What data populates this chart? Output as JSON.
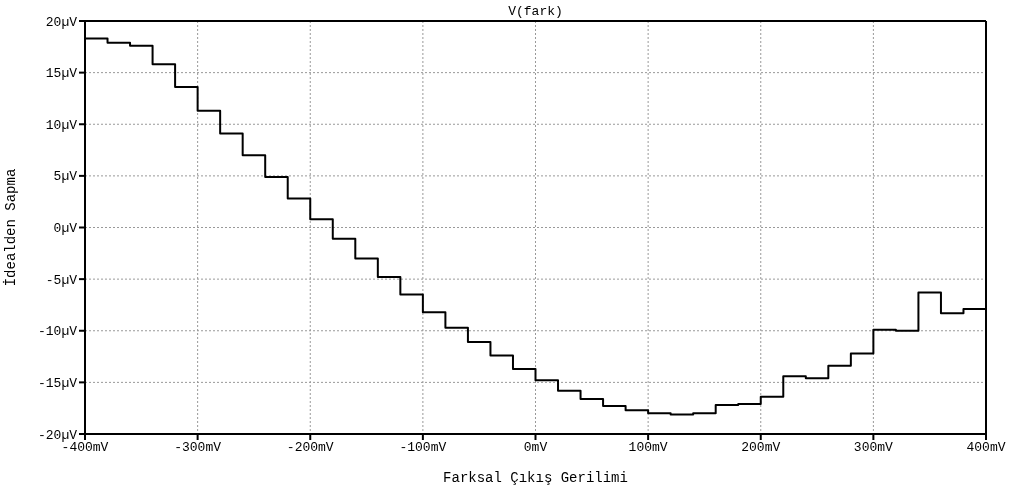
{
  "chart_data": {
    "type": "step",
    "title": "V(fark)",
    "xlabel": "Farksal Çıkış Gerilimi",
    "ylabel": "İdealden Sapma",
    "x": [
      -400,
      -380,
      -360,
      -340,
      -320,
      -300,
      -280,
      -260,
      -240,
      -220,
      -200,
      -180,
      -160,
      -140,
      -120,
      -100,
      -80,
      -60,
      -40,
      -20,
      0,
      20,
      40,
      60,
      80,
      100,
      120,
      140,
      160,
      180,
      200,
      220,
      240,
      260,
      280,
      300,
      320,
      340,
      360,
      380,
      400
    ],
    "series": [
      {
        "color": "#000000",
        "values": [
          18.3,
          17.9,
          17.6,
          15.8,
          13.6,
          11.3,
          9.1,
          7.0,
          4.9,
          2.8,
          0.8,
          -1.1,
          -3.0,
          -4.8,
          -6.5,
          -8.2,
          -9.7,
          -11.1,
          -12.4,
          -13.7,
          -14.8,
          -15.8,
          -16.6,
          -17.3,
          -17.7,
          -18.0,
          -18.1,
          -18.0,
          -17.2,
          -17.1,
          -16.4,
          -14.4,
          -14.6,
          -13.4,
          -12.2,
          -9.9,
          -10.0,
          -6.3,
          -8.3,
          -7.9,
          -7.9
        ]
      }
    ],
    "xlim": [
      -400,
      400
    ],
    "ylim": [
      -20,
      20
    ],
    "xticks": [
      {
        "value": -400,
        "label": "-400mV"
      },
      {
        "value": -300,
        "label": "-300mV"
      },
      {
        "value": -200,
        "label": "-200mV"
      },
      {
        "value": -100,
        "label": "-100mV"
      },
      {
        "value": 0,
        "label": "0mV"
      },
      {
        "value": 100,
        "label": "100mV"
      },
      {
        "value": 200,
        "label": "200mV"
      },
      {
        "value": 300,
        "label": "300mV"
      },
      {
        "value": 400,
        "label": "400mV"
      }
    ],
    "yticks": [
      {
        "value": -20,
        "label": "-20µV"
      },
      {
        "value": -15,
        "label": "-15µV"
      },
      {
        "value": -10,
        "label": "-10µV"
      },
      {
        "value": -5,
        "label": "-5µV"
      },
      {
        "value": 0,
        "label": "0µV"
      },
      {
        "value": 5,
        "label": "5µV"
      },
      {
        "value": 10,
        "label": "10µV"
      },
      {
        "value": 15,
        "label": "15µV"
      },
      {
        "value": 20,
        "label": "20µV"
      }
    ],
    "grid": true,
    "line_style": "solid",
    "marker": "none",
    "legend": false
  }
}
